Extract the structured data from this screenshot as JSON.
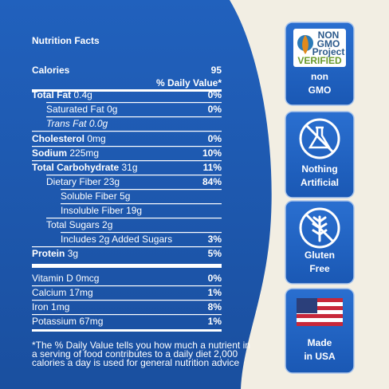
{
  "panel": {
    "title": "Nutrition Facts",
    "calories_label": "Calories",
    "calories_value": "95",
    "daily_value_header": "% Daily Value*",
    "rows": [
      {
        "name": "Total Fat",
        "amount": "0.4g",
        "dv": "0%"
      },
      {
        "name": "Saturated Fat",
        "amount": "0g",
        "dv": "0%"
      },
      {
        "name": "Trans Fat",
        "amount": "0.0g"
      },
      {
        "name": "Cholesterol",
        "amount": "0mg",
        "dv": "0%"
      },
      {
        "name": "Sodium",
        "amount": "225mg",
        "dv": "10%"
      },
      {
        "name": "Total Carbohydrate",
        "amount": "31g",
        "dv": "11%"
      },
      {
        "name": "Dietary Fiber",
        "amount": "23g",
        "dv": "84%"
      },
      {
        "name": "Soluble Fiber",
        "amount": "5g"
      },
      {
        "name": "Insoluble Fiber",
        "amount": "19g"
      },
      {
        "name": "Total Sugars",
        "amount": "2g"
      },
      {
        "name": "Includes",
        "amount": "2g Added Sugars",
        "dv": "3%"
      },
      {
        "name": "Protein",
        "amount": "3g",
        "dv": "5%"
      }
    ],
    "vitamins": [
      {
        "name": "Vitamin D",
        "amount": "0mcg",
        "dv": "0%"
      },
      {
        "name": "Calcium",
        "amount": "17mg",
        "dv": "1%"
      },
      {
        "name": "Iron",
        "amount": "1mg",
        "dv": "8%"
      },
      {
        "name": "Potassium",
        "amount": "67mg",
        "dv": "1%"
      }
    ],
    "footnote": [
      "*The % Daily Value tells you how much a nutrient in",
      "a serving of food contributes to a daily diet 2,000",
      "calories a day is used for general nutrition advice"
    ]
  },
  "badges": [
    {
      "logo": [
        "NON",
        "GMO",
        "Project",
        "VERIFIED"
      ],
      "lines": [
        "non",
        "GMO"
      ]
    },
    {
      "lines": [
        "Nothing",
        "Artificial"
      ]
    },
    {
      "lines": [
        "Gluten",
        "Free"
      ]
    },
    {
      "lines": [
        "Made",
        "in USA"
      ]
    }
  ]
}
